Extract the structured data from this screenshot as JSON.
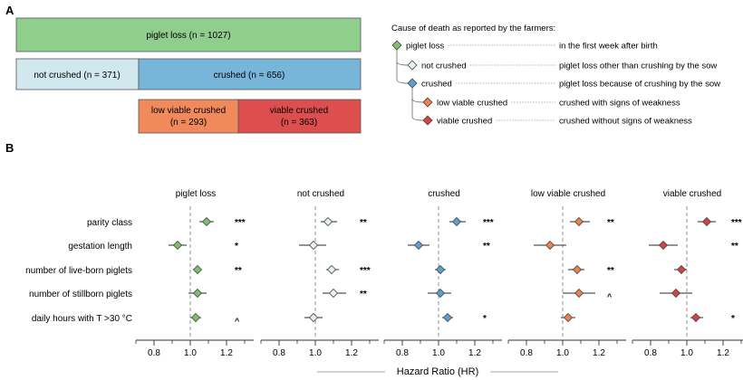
{
  "panels": {
    "a": "A",
    "b": "B"
  },
  "boxes": {
    "loss": {
      "label": "piglet loss (n = 1027)",
      "color": "#8fce8c"
    },
    "not_crushed": {
      "label": "not crushed (n = 371)",
      "color": "#d1e8ee"
    },
    "crushed": {
      "label": "crushed (n = 656)",
      "color": "#77b6d8"
    },
    "low_viable": {
      "line1": "low viable crushed",
      "line2": "(n = 293)",
      "color": "#f08a5d"
    },
    "viable": {
      "line1": "viable crushed",
      "line2": "(n = 363)",
      "color": "#dd4f4f"
    }
  },
  "legend": {
    "title": "Cause of death as reported by the farmers:",
    "items": [
      {
        "name": "piglet loss",
        "desc": "in the first week after birth",
        "color": "#7dbf6a"
      },
      {
        "name": "not crushed",
        "desc": "piglet loss other than crushing by the sow",
        "color": "#e4f2f5"
      },
      {
        "name": "crushed",
        "desc": "piglet loss because of crushing by the sow",
        "color": "#5c9fd0"
      },
      {
        "name": "low viable crushed",
        "desc": "crushed with signs of weakness",
        "color": "#f07f4f"
      },
      {
        "name": "viable crushed",
        "desc": "crushed without signs of weakness",
        "color": "#d24343"
      }
    ]
  },
  "chart_data": {
    "type": "scatter",
    "subtype": "forest-plot",
    "xlabel": "Hazard Ratio (HR)",
    "xlim": [
      0.7,
      1.35
    ],
    "reference_line": 1.0,
    "ticks": [
      0.8,
      1.0,
      1.2
    ],
    "tick_labels": [
      "0.8",
      "1.0",
      "1.2"
    ],
    "minor_ticks": [
      0.7,
      0.9,
      1.1,
      1.3
    ],
    "rows": [
      "parity class",
      "gestation length",
      "number of live-born piglets",
      "number of stillborn piglets",
      "daily hours with T >30 °C"
    ],
    "series": [
      {
        "name": "piglet loss",
        "color": "#7dbf6a",
        "hr": [
          1.09,
          0.93,
          1.04,
          1.04,
          1.03
        ],
        "lo": [
          1.05,
          0.88,
          1.02,
          0.99,
          1.0
        ],
        "hi": [
          1.13,
          0.98,
          1.06,
          1.09,
          1.06
        ],
        "sig": [
          "***",
          "*",
          "**",
          "",
          "^"
        ]
      },
      {
        "name": "not crushed",
        "color": "#e4f2f5",
        "hr": [
          1.07,
          0.99,
          1.09,
          1.1,
          0.99
        ],
        "lo": [
          1.03,
          0.91,
          1.06,
          1.04,
          0.94
        ],
        "hi": [
          1.12,
          1.06,
          1.13,
          1.17,
          1.04
        ],
        "sig": [
          "**",
          "",
          "***",
          "**",
          ""
        ]
      },
      {
        "name": "crushed",
        "color": "#5c9fd0",
        "hr": [
          1.1,
          0.89,
          1.01,
          1.01,
          1.05
        ],
        "lo": [
          1.06,
          0.83,
          0.98,
          0.94,
          1.02
        ],
        "hi": [
          1.15,
          0.95,
          1.04,
          1.07,
          1.08
        ],
        "sig": [
          "***",
          "**",
          "",
          "",
          "*"
        ]
      },
      {
        "name": "low viable crushed",
        "color": "#f07f4f",
        "hr": [
          1.09,
          0.93,
          1.08,
          1.09,
          1.03
        ],
        "lo": [
          1.04,
          0.84,
          1.03,
          1.0,
          0.99
        ],
        "hi": [
          1.15,
          1.02,
          1.12,
          1.18,
          1.07
        ],
        "sig": [
          "**",
          "",
          "**",
          "^",
          ""
        ]
      },
      {
        "name": "viable crushed",
        "color": "#d24343",
        "hr": [
          1.11,
          0.87,
          0.97,
          0.94,
          1.05
        ],
        "lo": [
          1.06,
          0.79,
          0.93,
          0.85,
          1.02
        ],
        "hi": [
          1.16,
          0.95,
          1.0,
          1.03,
          1.09
        ],
        "sig": [
          "***",
          "**",
          "",
          "",
          "*"
        ]
      }
    ]
  }
}
